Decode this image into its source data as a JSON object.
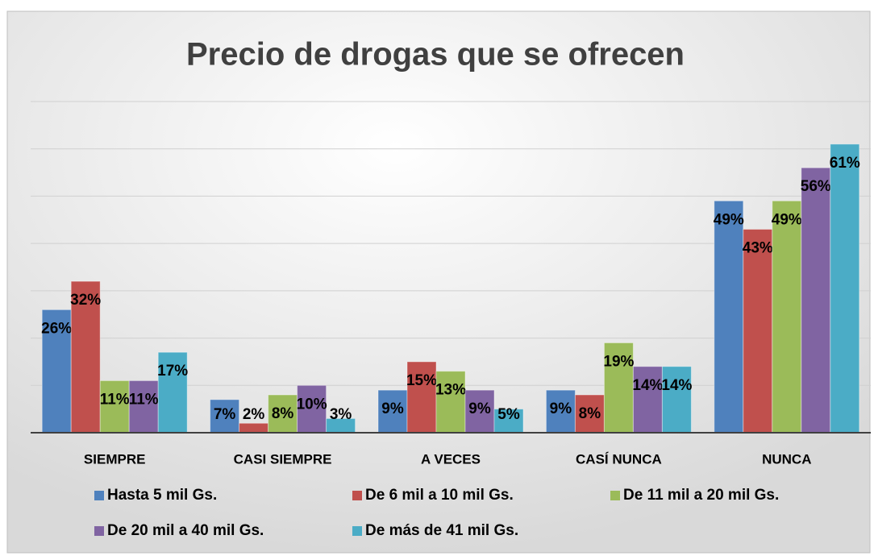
{
  "chart_data": {
    "type": "bar",
    "title": "Precio de  drogas que se ofrecen",
    "categories": [
      "SIEMPRE",
      "CASI SIEMPRE",
      "A VECES",
      "CASÍ NUNCA",
      "NUNCA"
    ],
    "series": [
      {
        "name": "Hasta 5 mil Gs.",
        "color": "#4f81bd",
        "values": [
          26,
          7,
          9,
          9,
          49
        ],
        "value_labels": [
          "26%",
          "7%",
          "9%",
          "9%",
          "49%"
        ]
      },
      {
        "name": "De 6 mil a 10 mil Gs.",
        "color": "#c0504d",
        "values": [
          32,
          2,
          15,
          8,
          43
        ],
        "value_labels": [
          "32%",
          "2%",
          "15%",
          "8%",
          "43%"
        ]
      },
      {
        "name": "De 11 mil a 20 mil Gs.",
        "color": "#9bbb59",
        "values": [
          11,
          8,
          13,
          19,
          49
        ],
        "value_labels": [
          "11%",
          "8%",
          "13%",
          "19%",
          "49%"
        ]
      },
      {
        "name": "De 20 mil a 40 mil Gs.",
        "color": "#8064a2",
        "values": [
          11,
          10,
          9,
          14,
          56
        ],
        "value_labels": [
          "11%",
          "10%",
          "9%",
          "14%",
          "56%"
        ]
      },
      {
        "name": "De más de 41 mil Gs.",
        "color": "#4bacc6",
        "values": [
          17,
          3,
          5,
          14,
          61
        ],
        "value_labels": [
          "17%",
          "3%",
          "5%",
          "14%",
          "61%"
        ]
      }
    ],
    "ylim": [
      0,
      70
    ],
    "yticks": [
      0,
      10,
      20,
      30,
      40,
      50,
      60,
      70
    ],
    "grid": true,
    "legend": "bottom"
  }
}
